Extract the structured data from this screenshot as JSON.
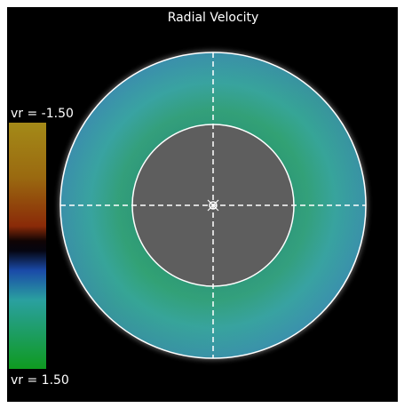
{
  "title": "Radial Velocity",
  "colorbar": {
    "top_label": "vr = -1.50",
    "bottom_label": "vr = 1.50"
  }
}
